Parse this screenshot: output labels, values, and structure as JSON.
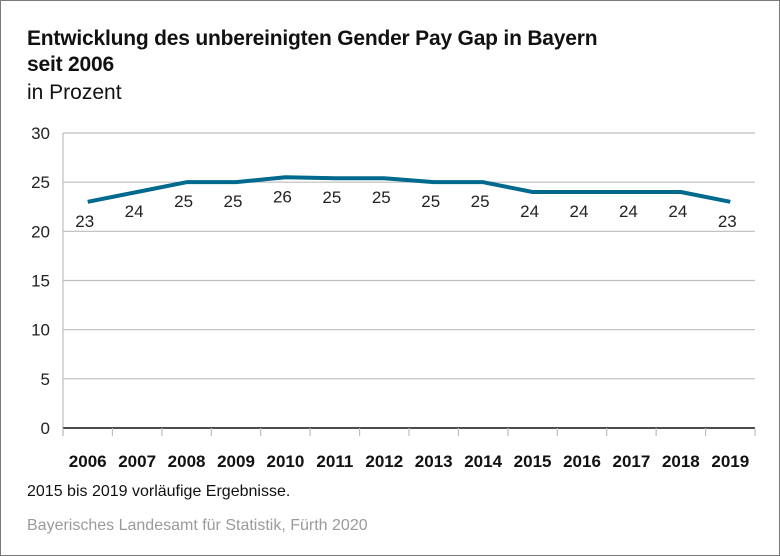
{
  "chart_data": {
    "type": "line",
    "title": "Entwicklung des unbereinigten Gender Pay Gap in Bayern seit 2006",
    "title_lines": [
      "Entwicklung des unbereinigten Gender Pay Gap in Bayern",
      "seit 2006"
    ],
    "subtitle": "in Prozent",
    "xlabel": "",
    "ylabel": "in Prozent",
    "categories": [
      "2006",
      "2007",
      "2008",
      "2009",
      "2010",
      "2011",
      "2012",
      "2013",
      "2014",
      "2015",
      "2016",
      "2017",
      "2018",
      "2019"
    ],
    "series": [
      {
        "name": "Unbereinigter Gender Pay Gap",
        "color": "#006a8e",
        "values": [
          23.0,
          24.0,
          25.0,
          25.0,
          25.5,
          25.4,
          25.4,
          25.0,
          25.0,
          24.0,
          24.0,
          24.0,
          24.0,
          23.0
        ],
        "labels": [
          "23",
          "24",
          "25",
          "25",
          "26",
          "25",
          "25",
          "25",
          "25",
          "24",
          "24",
          "24",
          "24",
          "23"
        ]
      }
    ],
    "ylim": [
      0,
      30
    ],
    "yticks": [
      0,
      5,
      10,
      15,
      20,
      25,
      30
    ],
    "grid": true,
    "legend": "none",
    "note": "2015 bis 2019 vorläufige Ergebnisse.",
    "source": "Bayerisches Landesamt für Statistik, Fürth 2020"
  }
}
